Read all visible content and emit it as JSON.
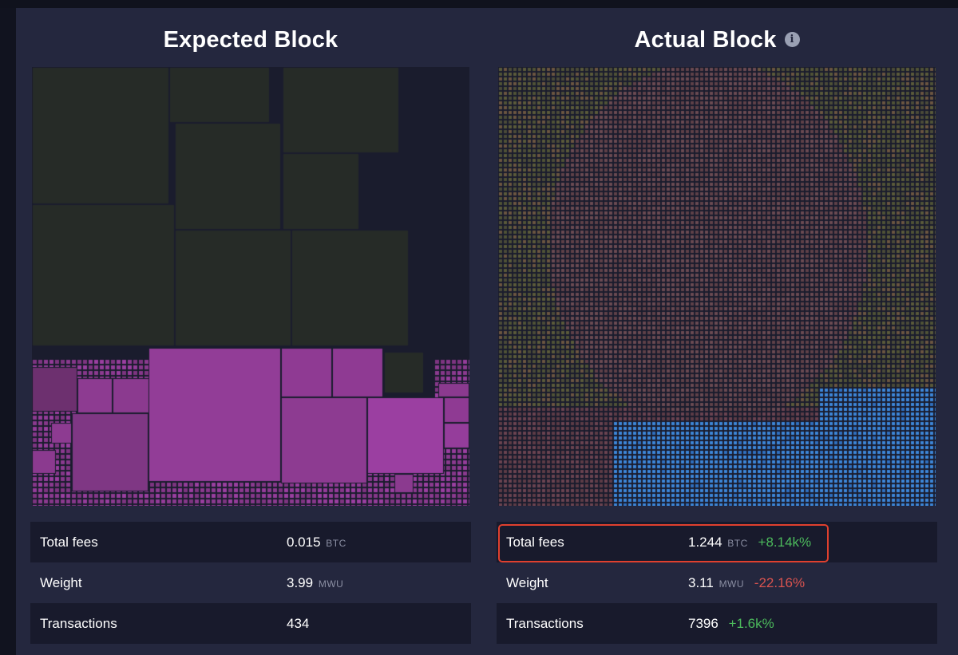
{
  "expected": {
    "title": "Expected Block",
    "stats": [
      {
        "label": "Total fees",
        "value": "0.015",
        "unit": "BTC",
        "delta": ""
      },
      {
        "label": "Weight",
        "value": "3.99",
        "unit": "MWU",
        "delta": ""
      },
      {
        "label": "Transactions",
        "value": "434",
        "unit": "",
        "delta": ""
      }
    ]
  },
  "actual": {
    "title": "Actual Block",
    "info_icon": "info-icon",
    "stats": [
      {
        "label": "Total fees",
        "value": "1.244",
        "unit": "BTC",
        "delta": "+8.14k%"
      },
      {
        "label": "Weight",
        "value": "3.11",
        "unit": "MWU",
        "delta": "-22.16%"
      },
      {
        "label": "Transactions",
        "value": "7396",
        "unit": "",
        "delta": "+1.6k%"
      }
    ]
  },
  "colors": {
    "background": "#24273e",
    "large_tx": "#262b27",
    "purple_tx": "#8b3a8f",
    "blue_tx": "#3d86d8",
    "positive": "#4cba5c",
    "negative": "#d9534f",
    "highlight": "#e0402e"
  }
}
